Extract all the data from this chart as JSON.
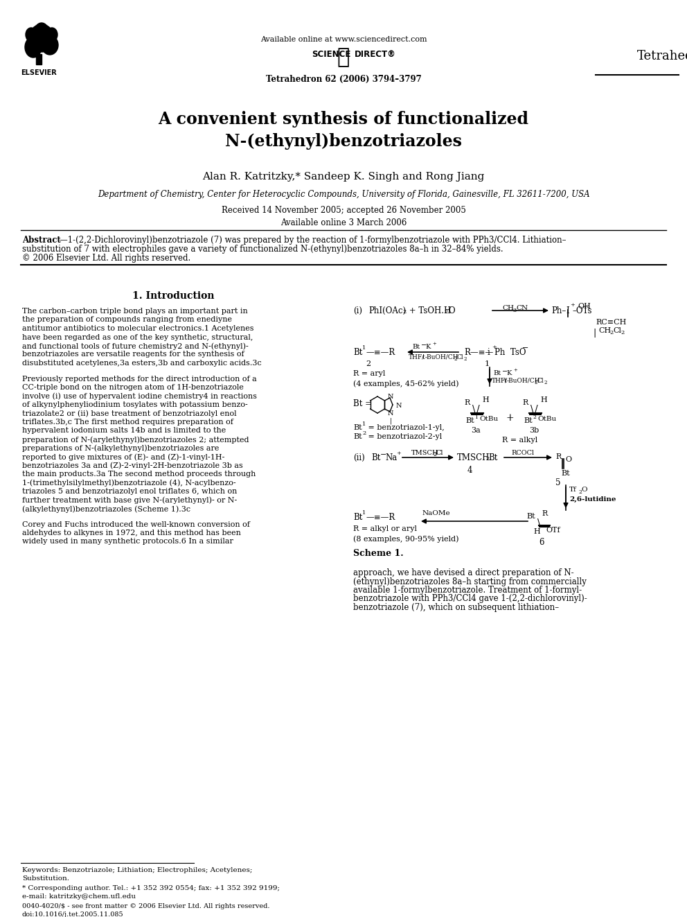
{
  "page_width": 9.92,
  "page_height": 13.23,
  "dpi": 100,
  "bg_color": "#ffffff",
  "header": {
    "available_online": "Available online at www.sciencedirect.com",
    "science_direct_left": "SCIENCE",
    "science_direct_right": "DIRECT®",
    "journal_ref": "Tetrahedron 62 (2006) 3794–3797",
    "journal_name": "Tetrahedron"
  },
  "title_line1": "A convenient synthesis of functionalized",
  "title_line2": "N-(ethynyl)benzotriazoles",
  "authors": "Alan R. Katritzky,* Sandeep K. Singh and Rong Jiang",
  "affiliation": "Department of Chemistry, Center for Heterocyclic Compounds, University of Florida, Gainesville, FL 32611-7200, USA",
  "received": "Received 14 November 2005; accepted 26 November 2005",
  "available_online2": "Available online 3 March 2006",
  "abstract_bold": "Abstract",
  "abstract_rest": "—1-(2,2-Dichlorovinyl)benzotriazole (7) was prepared by the reaction of 1-formylbenzotriazole with PPh3/CCl4. Lithiation–substitution of 7 with electrophiles gave a variety of functionalized N-(ethynyl)benzotriazoles 8a–h in 32–84% yields.\n© 2006 Elsevier Ltd. All rights reserved.",
  "section1_title": "1. Introduction",
  "intro_p1_lines": [
    "The carbon–carbon triple bond plays an important part in",
    "the preparation of compounds ranging from enediyne",
    "antitumor antibiotics to molecular electronics.1 Acetylenes",
    "have been regarded as one of the key synthetic, structural,",
    "and functional tools of future chemistry2 and N-(ethynyl)-",
    "benzotriazoles are versatile reagents for the synthesis of",
    "disubstituted acetylenes,3a esters,3b and carboxylic acids.3c"
  ],
  "intro_p2_lines": [
    "Previously reported methods for the direct introduction of a",
    "CC-triple bond on the nitrogen atom of 1H-benzotriazole",
    "involve (i) use of hypervalent iodine chemistry4 in reactions",
    "of alkynylphenyliodinium tosylates with potassium benzo-",
    "triazolate2 or (ii) base treatment of benzotriazolyl enol",
    "triflates.3b,c The first method requires preparation of",
    "hypervalent iodonium salts 14b and is limited to the",
    "preparation of N-(arylethynyl)benzotriazoles 2; attempted",
    "preparations of N-(alkylethynyl)benzotriazoles are",
    "reported to give mixtures of (E)- and (Z)-1-vinyl-1H-",
    "benzotriazoles 3a and (Z)-2-vinyl-2H-benzotriazole 3b as",
    "the main products.3a The second method proceeds through",
    "1-(trimethylsilylmethyl)benzotriazole (4), N-acylbenzo-",
    "triazoles 5 and benzotriazolyl enol triflates 6, which on",
    "further treatment with base give N-(arylethynyl)- or N-",
    "(alkylethynyl)benzotriazoles (Scheme 1).3c"
  ],
  "intro_p3_lines": [
    "Corey and Fuchs introduced the well-known conversion of",
    "aldehydes to alkynes in 1972, and this method has been",
    "widely used in many synthetic protocols.6 In a similar"
  ],
  "right_bottom_lines": [
    "approach, we have devised a direct preparation of N-",
    "(ethynyl)benzotriazoles 8a–h starting from commercially",
    "available 1-formylbenzotriazole. Treatment of 1-formyl-",
    "benzotriazole with PPh3/CCl4 gave 1-(2,2-dichlorovinyl)-",
    "benzotriazole (7), which on subsequent lithiation–"
  ],
  "scheme_label": "Scheme 1.",
  "footer_line1": "Keywords: Benzotriazole; Lithiation; Electrophiles; Acetylenes;",
  "footer_line2": "Substitution.",
  "footer_line3": "* Corresponding author. Tel.: +1 352 392 0554; fax: +1 352 392 9199;",
  "footer_line4": "e-mail: katritzky@chem.ufl.edu",
  "footer_line5": "0040-4020/$ - see front matter © 2006 Elsevier Ltd. All rights reserved.",
  "footer_line6": "doi:10.1016/j.tet.2005.11.085"
}
